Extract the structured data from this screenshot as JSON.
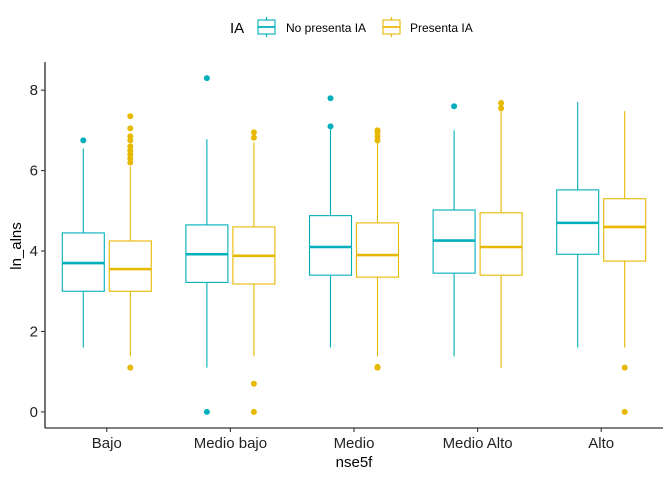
{
  "chart_data": {
    "type": "boxplot",
    "xlabel": "nse5f",
    "ylabel": "ln_alns",
    "ylim": [
      -0.4,
      8.7
    ],
    "yticks": [
      0,
      2,
      4,
      6,
      8
    ],
    "categories": [
      "Bajo",
      "Medio bajo",
      "Medio",
      "Medio Alto",
      "Alto"
    ],
    "grid": false,
    "legend": {
      "title": "IA",
      "position": "top"
    },
    "series": [
      {
        "name": "No presenta IA",
        "color": "#00AFBB",
        "boxes": [
          {
            "whisker_low": 1.6,
            "q1": 3.0,
            "median": 3.7,
            "q3": 4.45,
            "whisker_high": 6.55,
            "outliers": [
              6.75
            ]
          },
          {
            "whisker_low": 1.1,
            "q1": 3.22,
            "median": 3.92,
            "q3": 4.65,
            "whisker_high": 6.78,
            "outliers": [
              0.0,
              8.3
            ]
          },
          {
            "whisker_low": 1.6,
            "q1": 3.4,
            "median": 4.1,
            "q3": 4.88,
            "whisker_high": 7.05,
            "outliers": [
              7.1,
              7.8
            ]
          },
          {
            "whisker_low": 1.38,
            "q1": 3.45,
            "median": 4.26,
            "q3": 5.02,
            "whisker_high": 7.0,
            "outliers": [
              7.6
            ]
          },
          {
            "whisker_low": 1.6,
            "q1": 3.92,
            "median": 4.7,
            "q3": 5.52,
            "whisker_high": 7.7,
            "outliers": []
          }
        ]
      },
      {
        "name": "Presenta IA",
        "color": "#E7B800",
        "boxes": [
          {
            "whisker_low": 1.38,
            "q1": 3.0,
            "median": 3.55,
            "q3": 4.25,
            "whisker_high": 6.1,
            "outliers": [
              1.1,
              6.2,
              6.3,
              6.4,
              6.5,
              6.6,
              6.75,
              6.85,
              7.05,
              7.35
            ]
          },
          {
            "whisker_low": 1.38,
            "q1": 3.18,
            "median": 3.88,
            "q3": 4.6,
            "whisker_high": 6.7,
            "outliers": [
              0.0,
              0.7,
              6.82,
              6.95
            ]
          },
          {
            "whisker_low": 1.38,
            "q1": 3.35,
            "median": 3.9,
            "q3": 4.7,
            "whisker_high": 6.7,
            "outliers": [
              1.1,
              1.12,
              6.75,
              6.85,
              6.95,
              7.0
            ]
          },
          {
            "whisker_low": 1.1,
            "q1": 3.4,
            "median": 4.1,
            "q3": 4.95,
            "whisker_high": 7.5,
            "outliers": [
              7.55,
              7.68
            ]
          },
          {
            "whisker_low": 1.6,
            "q1": 3.75,
            "median": 4.6,
            "q3": 5.3,
            "whisker_high": 7.48,
            "outliers": [
              0.0,
              1.1
            ]
          }
        ]
      }
    ]
  }
}
